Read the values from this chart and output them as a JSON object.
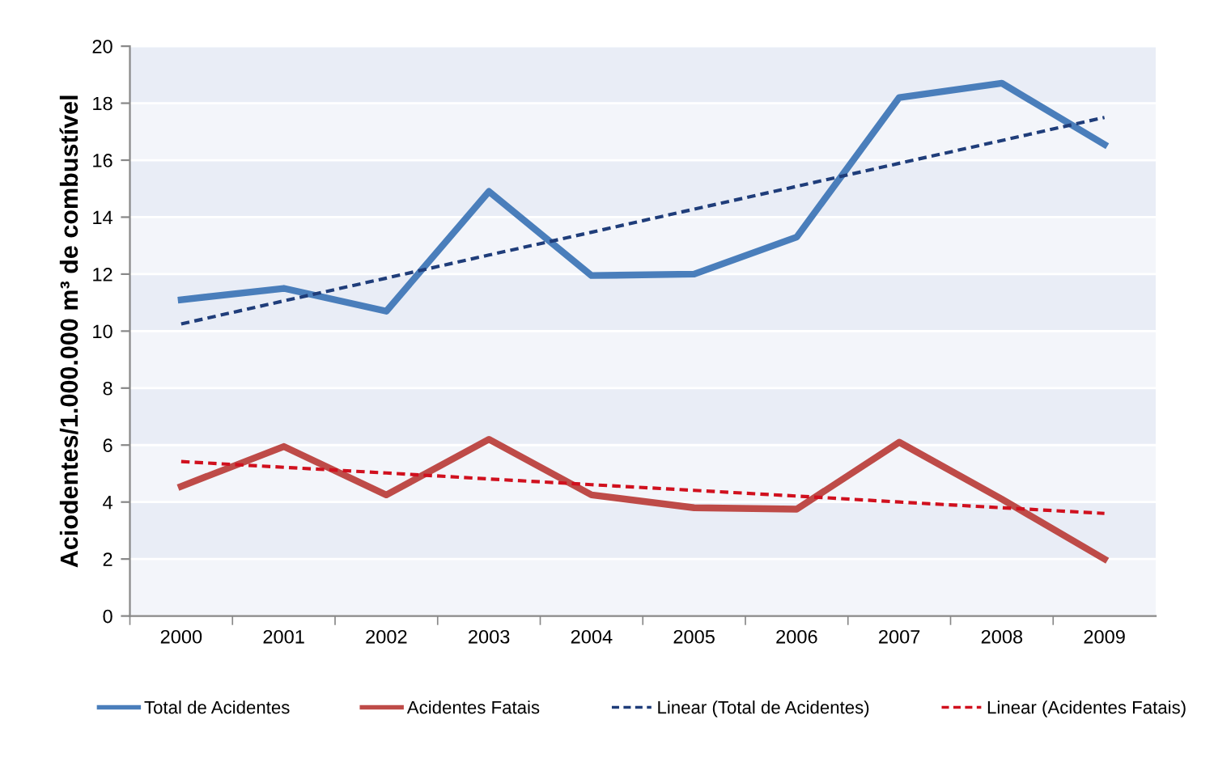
{
  "chart_data": {
    "type": "line",
    "ylabel": "Aciodentes/1.000.000 m³ de combustível",
    "categories": [
      "2000",
      "2001",
      "2002",
      "2003",
      "2004",
      "2005",
      "2006",
      "2007",
      "2008",
      "2009"
    ],
    "series": [
      {
        "name": "Total de Acidentes",
        "color": "#4a7ebb",
        "values": [
          11.1,
          11.5,
          10.7,
          14.9,
          11.95,
          12.0,
          13.3,
          18.2,
          18.7,
          16.55
        ]
      },
      {
        "name": "Acidentes Fatais",
        "color": "#be4b48",
        "values": [
          4.55,
          5.95,
          4.25,
          6.2,
          4.25,
          3.8,
          3.75,
          6.1,
          4.1,
          2.0
        ]
      },
      {
        "name": "Linear (Total de Acidentes)",
        "color": "#1f3d7a",
        "line_style": "dashed",
        "values": [
          10.25,
          11.06,
          11.86,
          12.67,
          13.47,
          14.28,
          15.08,
          15.89,
          16.69,
          17.5
        ]
      },
      {
        "name": "Linear (Acidentes Fatais)",
        "color": "#d0101e",
        "line_style": "dashed",
        "values": [
          5.42,
          5.22,
          5.02,
          4.81,
          4.61,
          4.41,
          4.21,
          4.0,
          3.8,
          3.6
        ]
      }
    ],
    "ylim": [
      0,
      20
    ],
    "yticks": [
      0,
      2,
      4,
      6,
      8,
      10,
      12,
      14,
      16,
      18,
      20
    ],
    "grid": "y",
    "legend": "bottom",
    "marker": "none"
  }
}
